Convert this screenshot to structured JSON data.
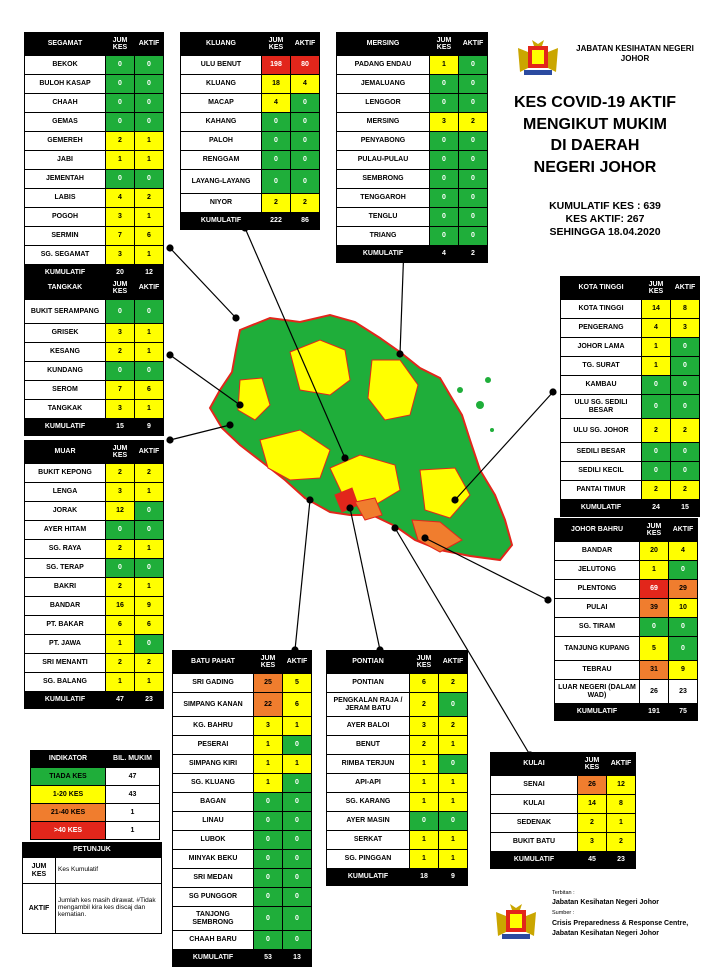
{
  "header": {
    "org_line1": "JABATAN KESIHATAN NEGERI",
    "org_line2": "JOHOR"
  },
  "title": {
    "line1": "KES COVID-19 AKTIF",
    "line2": "MENGIKUT MUKIM",
    "line3": "DI DAERAH",
    "line4": "NEGERI JOHOR"
  },
  "stats": {
    "kumulatif": "KUMULATIF KES : 639",
    "aktif": "KES AKTIF: 267",
    "tarikh": "SEHINGGA 18.04.2020"
  },
  "colors": {
    "green": "#1fae3a",
    "yellow": "#ffff00",
    "orange": "#f07d2e",
    "red": "#e2261b"
  },
  "segamat": {
    "h": [
      "SEGAMAT",
      "JUM KES",
      "AKTIF"
    ],
    "rows": [
      [
        "BEKOK",
        "0",
        "0",
        "g",
        "g"
      ],
      [
        "BULOH KASAP",
        "0",
        "0",
        "g",
        "g"
      ],
      [
        "CHAAH",
        "0",
        "0",
        "g",
        "g"
      ],
      [
        "GEMAS",
        "0",
        "0",
        "g",
        "g"
      ],
      [
        "GEMEREH",
        "2",
        "1",
        "y",
        "y"
      ],
      [
        "JABI",
        "1",
        "1",
        "y",
        "y"
      ],
      [
        "JEMENTAH",
        "0",
        "0",
        "g",
        "g"
      ],
      [
        "LABIS",
        "4",
        "2",
        "y",
        "y"
      ],
      [
        "POGOH",
        "3",
        "1",
        "y",
        "y"
      ],
      [
        "SERMIN",
        "7",
        "6",
        "y",
        "y"
      ],
      [
        "SG. SEGAMAT",
        "3",
        "1",
        "y",
        "y"
      ]
    ],
    "foot": [
      "KUMULATIF",
      "20",
      "12"
    ]
  },
  "kluang": {
    "h": [
      "KLUANG",
      "JUM KES",
      "AKTIF"
    ],
    "rows": [
      [
        "ULU BENUT",
        "198",
        "80",
        "r",
        "r"
      ],
      [
        "KLUANG",
        "18",
        "4",
        "y",
        "y"
      ],
      [
        "MACAP",
        "4",
        "0",
        "y",
        "g"
      ],
      [
        "KAHANG",
        "0",
        "0",
        "g",
        "g"
      ],
      [
        "PALOH",
        "0",
        "0",
        "g",
        "g"
      ],
      [
        "RENGGAM",
        "0",
        "0",
        "g",
        "g"
      ],
      [
        "LAYANG-LAYANG",
        "0",
        "0",
        "g",
        "g"
      ],
      [
        "NIYOR",
        "2",
        "2",
        "y",
        "y"
      ]
    ],
    "foot": [
      "KUMULATIF",
      "222",
      "86"
    ]
  },
  "mersing": {
    "h": [
      "MERSING",
      "JUM KES",
      "AKTIF"
    ],
    "rows": [
      [
        "PADANG ENDAU",
        "1",
        "0",
        "y",
        "g"
      ],
      [
        "JEMALUANG",
        "0",
        "0",
        "g",
        "g"
      ],
      [
        "LENGGOR",
        "0",
        "0",
        "g",
        "g"
      ],
      [
        "MERSING",
        "3",
        "2",
        "y",
        "y"
      ],
      [
        "PENYABONG",
        "0",
        "0",
        "g",
        "g"
      ],
      [
        "PULAU-PULAU",
        "0",
        "0",
        "g",
        "g"
      ],
      [
        "SEMBRONG",
        "0",
        "0",
        "g",
        "g"
      ],
      [
        "TENGGAROH",
        "0",
        "0",
        "g",
        "g"
      ],
      [
        "TENGLU",
        "0",
        "0",
        "g",
        "g"
      ],
      [
        "TRIANG",
        "0",
        "0",
        "g",
        "g"
      ]
    ],
    "foot": [
      "KUMULATIF",
      "4",
      "2"
    ]
  },
  "tangkak": {
    "h": [
      "TANGKAK",
      "JUM KES",
      "AKTIF"
    ],
    "rows": [
      [
        "BUKIT SERAMPANG",
        "0",
        "0",
        "g",
        "g"
      ],
      [
        "GRISEK",
        "3",
        "1",
        "y",
        "y"
      ],
      [
        "KESANG",
        "2",
        "1",
        "y",
        "y"
      ],
      [
        "KUNDANG",
        "0",
        "0",
        "g",
        "g"
      ],
      [
        "SEROM",
        "7",
        "6",
        "y",
        "y"
      ],
      [
        "TANGKAK",
        "3",
        "1",
        "y",
        "y"
      ]
    ],
    "foot": [
      "KUMULATIF",
      "15",
      "9"
    ]
  },
  "muar": {
    "h": [
      "MUAR",
      "JUM KES",
      "AKTIF"
    ],
    "rows": [
      [
        "BUKIT KEPONG",
        "2",
        "2",
        "y",
        "y"
      ],
      [
        "LENGA",
        "3",
        "1",
        "y",
        "y"
      ],
      [
        "JORAK",
        "12",
        "0",
        "y",
        "g"
      ],
      [
        "AYER HITAM",
        "0",
        "0",
        "g",
        "g"
      ],
      [
        "SG. RAYA",
        "2",
        "1",
        "y",
        "y"
      ],
      [
        "SG. TERAP",
        "0",
        "0",
        "g",
        "g"
      ],
      [
        "BAKRI",
        "2",
        "1",
        "y",
        "y"
      ],
      [
        "BANDAR",
        "16",
        "9",
        "y",
        "y"
      ],
      [
        "PT. BAKAR",
        "6",
        "6",
        "y",
        "y"
      ],
      [
        "PT. JAWA",
        "1",
        "0",
        "y",
        "g"
      ],
      [
        "SRI MENANTI",
        "2",
        "2",
        "y",
        "y"
      ],
      [
        "SG. BALANG",
        "1",
        "1",
        "y",
        "y"
      ]
    ],
    "foot": [
      "KUMULATIF",
      "47",
      "23"
    ]
  },
  "kotatinggi": {
    "h": [
      "KOTA TINGGI",
      "JUM KES",
      "AKTIF"
    ],
    "rows": [
      [
        "KOTA TINGGI",
        "14",
        "8",
        "y",
        "y"
      ],
      [
        "PENGERANG",
        "4",
        "3",
        "y",
        "y"
      ],
      [
        "JOHOR LAMA",
        "1",
        "0",
        "y",
        "g"
      ],
      [
        "TG. SURAT",
        "1",
        "0",
        "y",
        "g"
      ],
      [
        "KAMBAU",
        "0",
        "0",
        "g",
        "g"
      ],
      [
        "ULU SG. SEDILI BESAR",
        "0",
        "0",
        "g",
        "g"
      ],
      [
        "ULU SG. JOHOR",
        "2",
        "2",
        "y",
        "y"
      ],
      [
        "SEDILI BESAR",
        "0",
        "0",
        "g",
        "g"
      ],
      [
        "SEDILI KECIL",
        "0",
        "0",
        "g",
        "g"
      ],
      [
        "PANTAI TIMUR",
        "2",
        "2",
        "y",
        "y"
      ]
    ],
    "foot": [
      "KUMULATIF",
      "24",
      "15"
    ]
  },
  "johorbahru": {
    "h": [
      "JOHOR BAHRU",
      "JUM KES",
      "AKTIF"
    ],
    "rows": [
      [
        "BANDAR",
        "20",
        "4",
        "y",
        "y"
      ],
      [
        "JELUTONG",
        "1",
        "0",
        "y",
        "g"
      ],
      [
        "PLENTONG",
        "69",
        "29",
        "r",
        "o"
      ],
      [
        "PULAI",
        "39",
        "10",
        "o",
        "y"
      ],
      [
        "SG. TIRAM",
        "0",
        "0",
        "g",
        "g"
      ],
      [
        "TANJUNG KUPANG",
        "5",
        "0",
        "y",
        "g"
      ],
      [
        "TEBRAU",
        "31",
        "9",
        "o",
        "y"
      ],
      [
        "LUAR NEGERI (DALAM WAD)",
        "26",
        "23",
        "w",
        "w"
      ]
    ],
    "foot": [
      "KUMULATIF",
      "191",
      "75"
    ]
  },
  "batupahat": {
    "h": [
      "BATU PAHAT",
      "JUM KES",
      "AKTIF"
    ],
    "rows": [
      [
        "SRI GADING",
        "25",
        "5",
        "o",
        "y"
      ],
      [
        "SIMPANG KANAN",
        "22",
        "6",
        "o",
        "y"
      ],
      [
        "KG. BAHRU",
        "3",
        "1",
        "y",
        "y"
      ],
      [
        "PESERAI",
        "1",
        "0",
        "y",
        "g"
      ],
      [
        "SIMPANG KIRI",
        "1",
        "1",
        "y",
        "y"
      ],
      [
        "SG. KLUANG",
        "1",
        "0",
        "y",
        "g"
      ],
      [
        "BAGAN",
        "0",
        "0",
        "g",
        "g"
      ],
      [
        "LINAU",
        "0",
        "0",
        "g",
        "g"
      ],
      [
        "LUBOK",
        "0",
        "0",
        "g",
        "g"
      ],
      [
        "MINYAK BEKU",
        "0",
        "0",
        "g",
        "g"
      ],
      [
        "SRI MEDAN",
        "0",
        "0",
        "g",
        "g"
      ],
      [
        "SG PUNGGOR",
        "0",
        "0",
        "g",
        "g"
      ],
      [
        "TANJONG SEMBRONG",
        "0",
        "0",
        "g",
        "g"
      ],
      [
        "CHAAH BARU",
        "0",
        "0",
        "g",
        "g"
      ]
    ],
    "foot": [
      "KUMULATIF",
      "53",
      "13"
    ]
  },
  "pontian": {
    "h": [
      "PONTIAN",
      "JUM KES",
      "AKTIF"
    ],
    "rows": [
      [
        "PONTIAN",
        "6",
        "2",
        "y",
        "y"
      ],
      [
        "PENGKALAN RAJA / JERAM BATU",
        "2",
        "0",
        "y",
        "g"
      ],
      [
        "AYER BALOI",
        "3",
        "2",
        "y",
        "y"
      ],
      [
        "BENUT",
        "2",
        "1",
        "y",
        "y"
      ],
      [
        "RIMBA TERJUN",
        "1",
        "0",
        "y",
        "g"
      ],
      [
        "API-API",
        "1",
        "1",
        "y",
        "y"
      ],
      [
        "SG. KARANG",
        "1",
        "1",
        "y",
        "y"
      ],
      [
        "AYER MASIN",
        "0",
        "0",
        "g",
        "g"
      ],
      [
        "SERKAT",
        "1",
        "1",
        "y",
        "y"
      ],
      [
        "SG. PINGGAN",
        "1",
        "1",
        "y",
        "y"
      ]
    ],
    "foot": [
      "KUMULATIF",
      "18",
      "9"
    ]
  },
  "kulai": {
    "h": [
      "KULAI",
      "JUM KES",
      "AKTIF"
    ],
    "rows": [
      [
        "SENAI",
        "26",
        "12",
        "o",
        "y"
      ],
      [
        "KULAI",
        "14",
        "8",
        "y",
        "y"
      ],
      [
        "SEDENAK",
        "2",
        "1",
        "y",
        "y"
      ],
      [
        "BUKIT BATU",
        "3",
        "2",
        "y",
        "y"
      ]
    ],
    "foot": [
      "KUMULATIF",
      "45",
      "23"
    ]
  },
  "indikator": {
    "h": [
      "INDIKATOR",
      "BIL. MUKIM"
    ],
    "rows": [
      [
        "TIADA KES",
        "47",
        "g"
      ],
      [
        "1-20 KES",
        "43",
        "y"
      ],
      [
        "21-40 KES",
        "1",
        "o"
      ],
      [
        ">40 KES",
        "1",
        "r"
      ]
    ]
  },
  "petunjuk": {
    "title": "PETUNJUK",
    "rows": [
      [
        "JUM KES",
        "Kes Kumulatif"
      ],
      [
        "AKTIF",
        "Jumlah kes masih dirawat. #Tidak mengambil kira kes discaj dan kematian."
      ]
    ]
  },
  "footer": {
    "terbitan_label": "Terbitan :",
    "terbitan": "Jabatan Kesihatan Negeri Johor",
    "sumber_label": "Sumber :",
    "sumber1": "Crisis Preparedness & Response Centre,",
    "sumber2": "Jabatan Kesihatan Negeri Johor"
  }
}
